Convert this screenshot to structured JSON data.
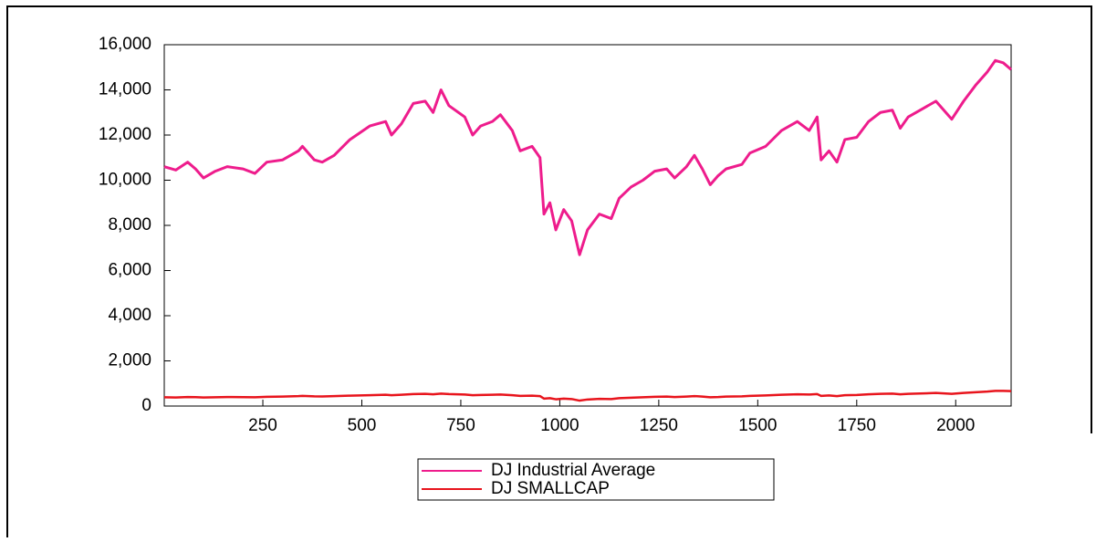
{
  "chart_data": {
    "type": "line",
    "x": [
      1,
      30,
      60,
      80,
      100,
      130,
      160,
      200,
      230,
      260,
      300,
      340,
      350,
      380,
      400,
      430,
      470,
      520,
      560,
      575,
      600,
      630,
      660,
      680,
      700,
      720,
      760,
      780,
      800,
      830,
      850,
      880,
      900,
      930,
      950,
      960,
      975,
      990,
      1010,
      1030,
      1050,
      1070,
      1100,
      1130,
      1150,
      1180,
      1210,
      1240,
      1270,
      1290,
      1320,
      1340,
      1360,
      1380,
      1400,
      1420,
      1460,
      1480,
      1520,
      1560,
      1600,
      1630,
      1650,
      1660,
      1680,
      1700,
      1720,
      1750,
      1780,
      1810,
      1840,
      1860,
      1880,
      1920,
      1950,
      1970,
      1990,
      2020,
      2050,
      2080,
      2100,
      2120,
      2140
    ],
    "series": [
      {
        "name": "DJ Industrial Average",
        "color": "#ee1c8c",
        "values": [
          10600,
          10450,
          10800,
          10500,
          10100,
          10400,
          10600,
          10500,
          10300,
          10800,
          10900,
          11300,
          11500,
          10900,
          10800,
          11100,
          11800,
          12400,
          12600,
          12000,
          12500,
          13400,
          13500,
          13000,
          14000,
          13300,
          12800,
          12000,
          12400,
          12600,
          12900,
          12200,
          11300,
          11500,
          11000,
          8500,
          9000,
          7800,
          8700,
          8200,
          6700,
          7800,
          8500,
          8300,
          9200,
          9700,
          10000,
          10400,
          10500,
          10100,
          10600,
          11100,
          10500,
          9800,
          10200,
          10500,
          10700,
          11200,
          11500,
          12200,
          12600,
          12200,
          12800,
          10900,
          11300,
          10800,
          11800,
          11900,
          12600,
          13000,
          13100,
          12300,
          12800,
          13200,
          13500,
          13100,
          12700,
          13500,
          14200,
          14800,
          15300,
          15200,
          14900
        ]
      },
      {
        "name": "DJ SMALLCAP",
        "color": "#e8141c",
        "values": [
          390,
          380,
          400,
          395,
          380,
          390,
          400,
          395,
          390,
          410,
          420,
          440,
          450,
          430,
          425,
          440,
          460,
          480,
          500,
          480,
          500,
          530,
          540,
          520,
          550,
          530,
          510,
          480,
          490,
          500,
          510,
          480,
          450,
          460,
          440,
          330,
          350,
          300,
          330,
          310,
          240,
          290,
          320,
          310,
          350,
          370,
          390,
          410,
          420,
          400,
          420,
          440,
          420,
          390,
          400,
          420,
          430,
          450,
          470,
          500,
          520,
          510,
          530,
          450,
          470,
          440,
          480,
          490,
          520,
          540,
          550,
          520,
          540,
          560,
          580,
          560,
          540,
          580,
          610,
          640,
          670,
          670,
          660
        ]
      }
    ],
    "xlim": [
      1,
      2140
    ],
    "xticks": [
      250,
      500,
      750,
      1000,
      1250,
      1500,
      1750,
      2000
    ],
    "ylim": [
      0,
      16000
    ],
    "yticks": [
      0,
      {
        "value": 2000,
        "label": "2,000"
      },
      {
        "value": 4000,
        "label": "4,000"
      },
      {
        "value": 6000,
        "label": "6,000"
      },
      {
        "value": 8000,
        "label": "8,000"
      },
      {
        "value": 10000,
        "label": "10,000"
      },
      {
        "value": 12000,
        "label": "12,000"
      },
      {
        "value": 14000,
        "label": "14,000"
      },
      {
        "value": 16000,
        "label": "16,000"
      }
    ],
    "grid": false
  }
}
